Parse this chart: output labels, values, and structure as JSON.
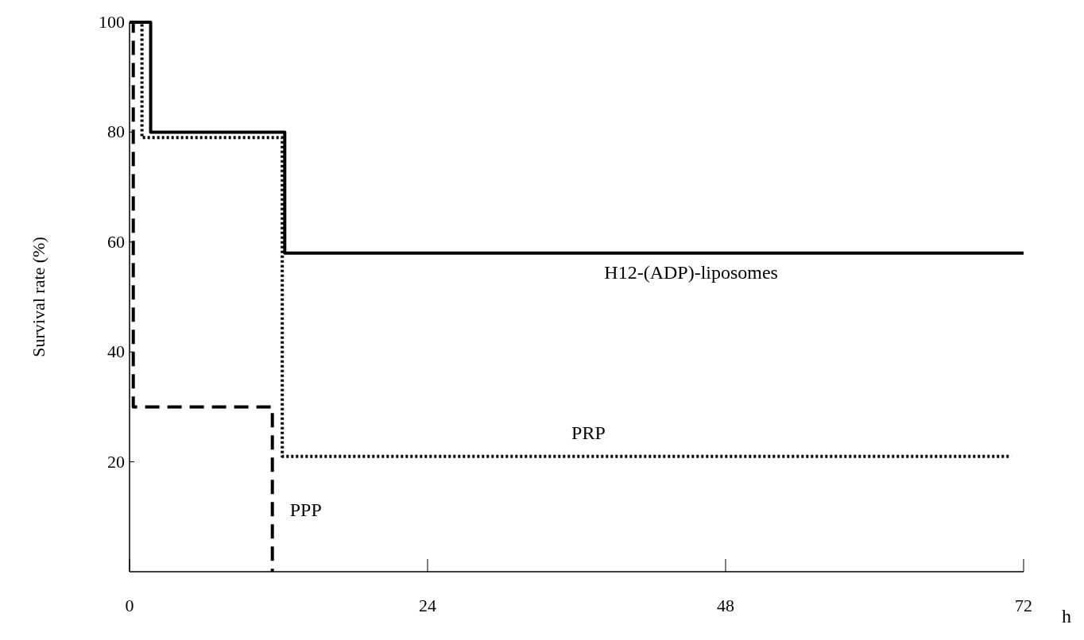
{
  "chart_data": {
    "type": "step",
    "ylabel": "Survival rate (%)",
    "xlabel": "h",
    "xlim": [
      0,
      72
    ],
    "xticks": [
      0,
      24,
      48,
      72
    ],
    "ylim": [
      0,
      100
    ],
    "yticks": [
      20,
      40,
      60,
      80,
      100
    ],
    "grid": false,
    "series": [
      {
        "name": "H12-(ADP)-liposomes",
        "color": "#000000",
        "line_style": "solid",
        "x": [
          0,
          1.7,
          12.5,
          72
        ],
        "values": [
          100,
          80,
          58,
          58
        ]
      },
      {
        "name": "PRP",
        "color": "#000000",
        "line_style": "dotted",
        "x": [
          0,
          1,
          12.3,
          71
        ],
        "values": [
          100,
          79,
          21,
          21
        ]
      },
      {
        "name": "PPP",
        "color": "#000000",
        "line_style": "dashed",
        "x": [
          0,
          0.3,
          11.5,
          11.5
        ],
        "values": [
          100,
          30,
          0,
          0
        ]
      }
    ]
  }
}
